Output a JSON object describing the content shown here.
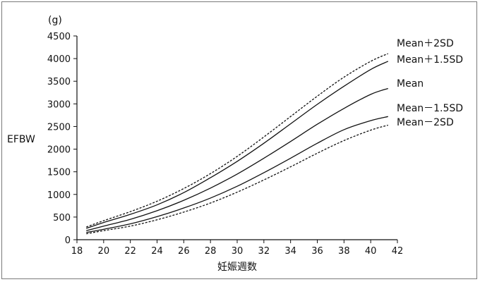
{
  "chart_data": {
    "type": "line",
    "xlabel": "妊娠週数",
    "ylabel": "EFBW",
    "yunit": "(g)",
    "xlim": [
      18,
      42
    ],
    "ylim": [
      0,
      4500
    ],
    "xticks": [
      "18",
      "20",
      "22",
      "24",
      "26",
      "28",
      "30",
      "32",
      "34",
      "36",
      "38",
      "40",
      "42"
    ],
    "yticks": [
      "0",
      "500",
      "1000",
      "1500",
      "2000",
      "2500",
      "3000",
      "3500",
      "4000",
      "4500"
    ],
    "grid": false,
    "legend": "inline labels at right end of each curve",
    "x": [
      18.7,
      20,
      22,
      24,
      26,
      28,
      30,
      32,
      34,
      36,
      38,
      40,
      41.3
    ],
    "series": [
      {
        "name": "Mean＋2SD",
        "style": "dashed",
        "values": [
          280,
          420,
          620,
          850,
          1130,
          1460,
          1840,
          2270,
          2720,
          3170,
          3590,
          3940,
          4110
        ]
      },
      {
        "name": "Mean＋1.5SD",
        "style": "solid",
        "values": [
          250,
          380,
          560,
          770,
          1040,
          1370,
          1730,
          2130,
          2560,
          2990,
          3390,
          3760,
          3940
        ]
      },
      {
        "name": "Mean",
        "style": "solid",
        "values": [
          200,
          300,
          450,
          640,
          870,
          1140,
          1450,
          1800,
          2170,
          2550,
          2900,
          3210,
          3340
        ]
      },
      {
        "name": "Mean－1.5SD",
        "style": "solid",
        "values": [
          160,
          230,
          350,
          510,
          700,
          920,
          1180,
          1480,
          1800,
          2130,
          2430,
          2630,
          2720
        ]
      },
      {
        "name": "Mean－2SD",
        "style": "dashed",
        "values": [
          130,
          200,
          300,
          440,
          610,
          810,
          1050,
          1320,
          1610,
          1910,
          2190,
          2420,
          2530
        ]
      }
    ]
  }
}
